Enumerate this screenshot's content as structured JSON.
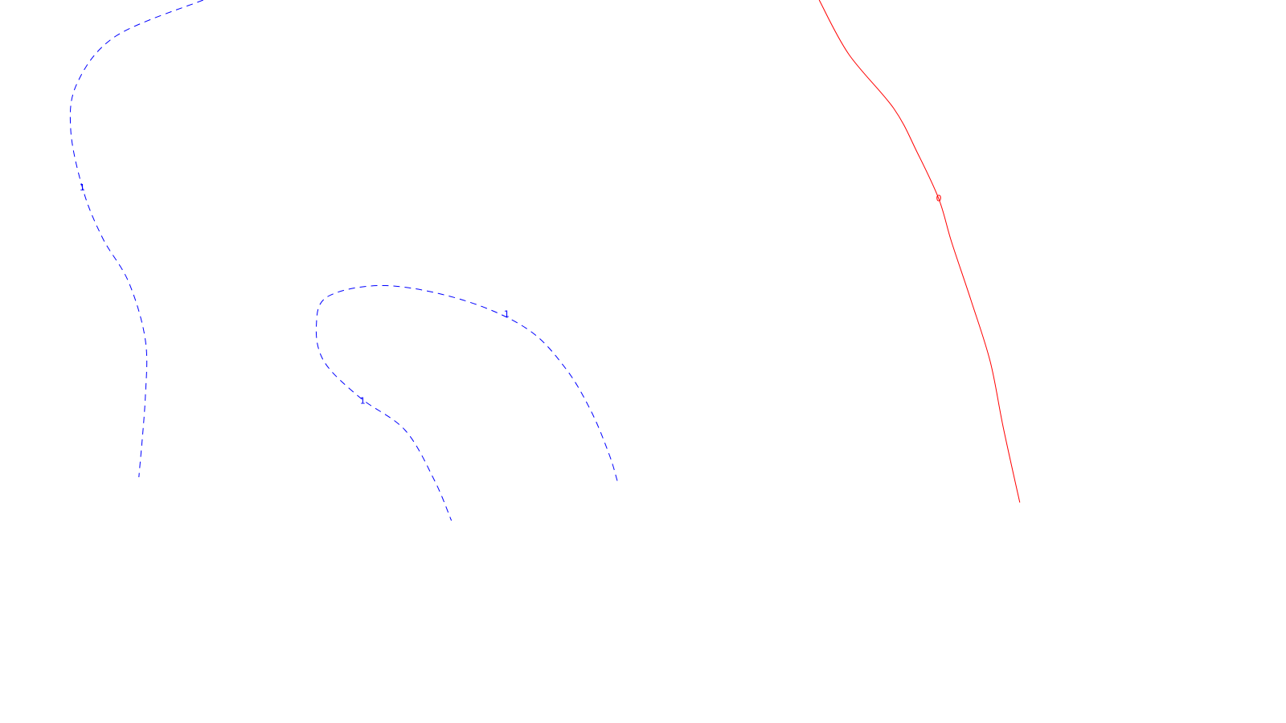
{
  "chart_data": {
    "type": "contour",
    "title": "",
    "xlabel": "",
    "ylabel": "",
    "grid": false,
    "legend": "none",
    "contours": [
      {
        "level": "1",
        "color": "#0000ff",
        "style": "dashed",
        "label_positions": [
          [
            0.064,
            0.74
          ]
        ],
        "points": [
          [
            0.158,
            1.0
          ],
          [
            0.09,
            0.95
          ],
          [
            0.06,
            0.885
          ],
          [
            0.055,
            0.82
          ],
          [
            0.065,
            0.735
          ],
          [
            0.08,
            0.67
          ],
          [
            0.1,
            0.61
          ],
          [
            0.113,
            0.53
          ],
          [
            0.113,
            0.45
          ],
          [
            0.108,
            0.34
          ]
        ]
      },
      {
        "level": "1",
        "color": "#0000ff",
        "style": "dashed",
        "label_positions": [
          [
            0.394,
            0.565
          ],
          [
            0.282,
            0.445
          ]
        ],
        "points": [
          [
            0.48,
            0.335
          ],
          [
            0.474,
            0.37
          ],
          [
            0.46,
            0.43
          ],
          [
            0.44,
            0.49
          ],
          [
            0.41,
            0.545
          ],
          [
            0.36,
            0.585
          ],
          [
            0.3,
            0.605
          ],
          [
            0.255,
            0.59
          ],
          [
            0.246,
            0.55
          ],
          [
            0.252,
            0.5
          ],
          [
            0.28,
            0.45
          ],
          [
            0.315,
            0.405
          ],
          [
            0.338,
            0.335
          ],
          [
            0.351,
            0.28
          ]
        ]
      },
      {
        "level": "0",
        "color": "#ff0000",
        "style": "solid",
        "label_positions": [
          [
            0.73,
            0.725
          ]
        ],
        "points": [
          [
            0.637,
            1.0
          ],
          [
            0.66,
            0.925
          ],
          [
            0.695,
            0.85
          ],
          [
            0.713,
            0.79
          ],
          [
            0.73,
            0.725
          ],
          [
            0.74,
            0.665
          ],
          [
            0.755,
            0.585
          ],
          [
            0.77,
            0.5
          ],
          [
            0.78,
            0.41
          ],
          [
            0.793,
            0.305
          ]
        ]
      }
    ]
  }
}
